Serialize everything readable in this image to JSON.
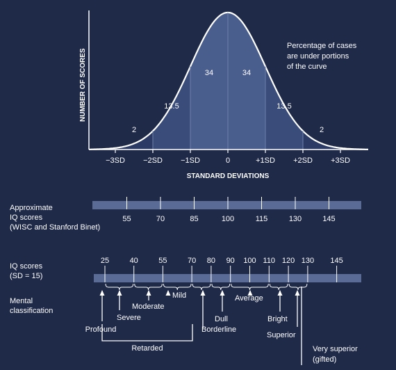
{
  "chart_data": {
    "type": "area",
    "ylabel": "NUMBER OF SCORES",
    "xlabel": "STANDARD DEVIATIONS",
    "x_ticks": [
      "-3SD",
      "-2SD",
      "-1SD",
      "0",
      "+1SD",
      "+2SD",
      "+3SD"
    ],
    "region_percentages": [
      {
        "from": -3,
        "to": -2,
        "value": "2"
      },
      {
        "from": -2,
        "to": -1,
        "value": "13.5"
      },
      {
        "from": -1,
        "to": 0,
        "value": "34"
      },
      {
        "from": 0,
        "to": 1,
        "value": "34"
      },
      {
        "from": 1,
        "to": 2,
        "value": "13.5"
      },
      {
        "from": 2,
        "to": 3,
        "value": "2"
      }
    ],
    "annotation": [
      "Percentage of cases",
      "are under portions",
      "of the curve"
    ]
  },
  "approx_scale": {
    "label_lines": [
      "Approximate",
      "IQ scores",
      "(WISC and Stanford  Binet)"
    ],
    "ticks": [
      "55",
      "70",
      "85",
      "100",
      "115",
      "130",
      "145"
    ]
  },
  "iq_scale": {
    "label_lines": [
      "IQ scores",
      "(SD = 15)"
    ],
    "ticks": [
      "25",
      "40",
      "55",
      "70",
      "80",
      "90",
      "100",
      "110",
      "120",
      "130",
      "145"
    ]
  },
  "classification": {
    "label_lines": [
      "Mental",
      "classification"
    ],
    "items": [
      "Profound",
      "Severe",
      "Moderate",
      "Mild",
      "Borderline",
      "Dull",
      "Average",
      "Bright",
      "Superior"
    ],
    "group_retarded": "Retarded",
    "very_superior_lines": [
      "Very superior",
      "(gifted)"
    ]
  },
  "colors": {
    "background": "#1f2a48",
    "fill_outer": "#2a3a64",
    "fill_mid": "#3a4c7a",
    "fill_inner": "#4a5e8e",
    "bar": "#5a6c96"
  }
}
